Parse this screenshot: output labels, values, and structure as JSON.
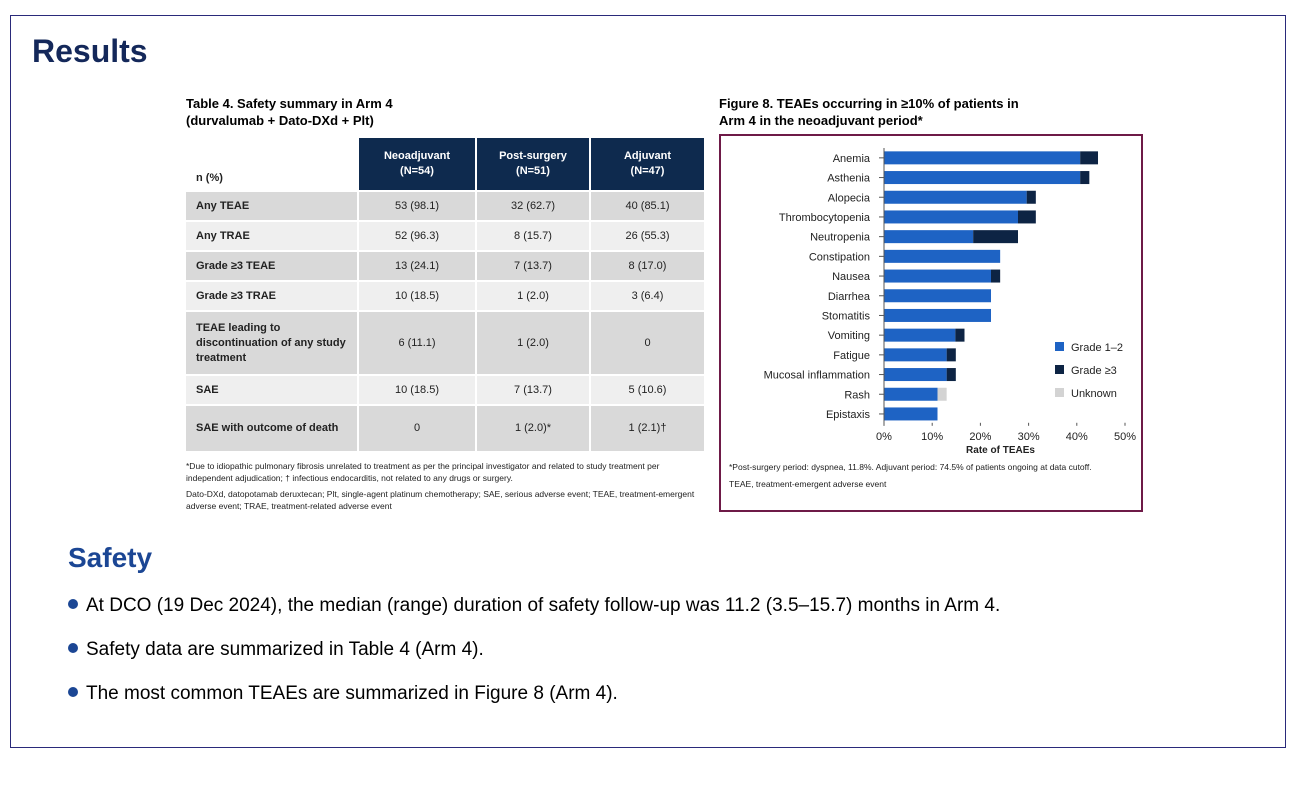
{
  "page": {
    "title": "Results"
  },
  "table": {
    "caption_line1": "Table 4. Safety summary in Arm 4",
    "caption_line2": "(durvalumab + Dato-DXd + Plt)",
    "header_label": "n (%)",
    "columns": [
      {
        "name": "Neoadjuvant",
        "n": "(N=54)"
      },
      {
        "name": "Post-surgery",
        "n": "(N=51)"
      },
      {
        "name": "Adjuvant",
        "n": "(N=47)"
      }
    ],
    "rows": [
      {
        "label": "Any TEAE",
        "values": [
          "53 (98.1)",
          "32 (62.7)",
          "40 (85.1)"
        ]
      },
      {
        "label": "Any TRAE",
        "values": [
          "52 (96.3)",
          "8 (15.7)",
          "26 (55.3)"
        ]
      },
      {
        "label": "Grade ≥3 TEAE",
        "values": [
          "13 (24.1)",
          "7 (13.7)",
          "8 (17.0)"
        ]
      },
      {
        "label": "Grade ≥3 TRAE",
        "values": [
          "10 (18.5)",
          "1 (2.0)",
          "3 (6.4)"
        ]
      },
      {
        "label": "TEAE leading to discontinuation of any study treatment",
        "values": [
          "6 (11.1)",
          "1 (2.0)",
          "0"
        ]
      },
      {
        "label": "SAE",
        "values": [
          "10 (18.5)",
          "7 (13.7)",
          "5 (10.6)"
        ]
      },
      {
        "label": "SAE with outcome of death",
        "values": [
          "0",
          "1 (2.0)*",
          "1 (2.1)†"
        ]
      }
    ],
    "footnote1": "*Due to idiopathic pulmonary fibrosis unrelated to treatment as per the principal investigator and related to study treatment per independent adjudication; † infectious endocarditis, not related to any drugs or surgery.",
    "footnote2": "Dato-DXd, datopotamab deruxtecan; Plt, single-agent platinum chemotherapy; SAE, serious adverse event; TEAE, treatment-emergent adverse event; TRAE, treatment-related adverse event"
  },
  "figure": {
    "caption_line1": "Figure 8. TEAEs occurring in ≥10% of patients in",
    "caption_line2": "Arm 4 in the neoadjuvant period*",
    "footnote1": "*Post-surgery period: dyspnea, 11.8%. Adjuvant period: 74.5% of patients ongoing at data cutoff.",
    "footnote2": "TEAE, treatment-emergent adverse event"
  },
  "chart_data": {
    "type": "bar",
    "orientation": "horizontal",
    "stacked": true,
    "categories": [
      "Anemia",
      "Asthenia",
      "Alopecia",
      "Thrombocytopenia",
      "Neutropenia",
      "Constipation",
      "Nausea",
      "Diarrhea",
      "Stomatitis",
      "Vomiting",
      "Fatigue",
      "Mucosal inflammation",
      "Rash",
      "Epistaxis"
    ],
    "series": [
      {
        "name": "Grade 1–2",
        "color": "#1e63c4",
        "values": [
          40.7,
          40.7,
          29.6,
          27.8,
          18.5,
          24.1,
          22.2,
          22.2,
          22.2,
          14.8,
          13.0,
          13.0,
          11.1,
          11.1
        ]
      },
      {
        "name": "Grade ≥3",
        "color": "#0d2444",
        "values": [
          3.7,
          1.9,
          1.9,
          3.7,
          9.3,
          0,
          1.9,
          0,
          0,
          1.9,
          1.9,
          1.9,
          0,
          0
        ]
      },
      {
        "name": "Unknown",
        "color": "#d3d3d3",
        "values": [
          0,
          0,
          0,
          0,
          0,
          0,
          0,
          0,
          0,
          0,
          0,
          0,
          1.9,
          0
        ]
      }
    ],
    "xlabel": "Rate of TEAEs",
    "xlim": [
      0,
      50
    ],
    "xticks": [
      "0%",
      "10%",
      "20%",
      "30%",
      "40%",
      "50%"
    ],
    "legend_position": "right",
    "grid": false
  },
  "safety": {
    "heading": "Safety",
    "bullets": [
      "At DCO (19 Dec 2024), the median (range) duration of safety follow-up was 11.2 (3.5–15.7) months in Arm 4.",
      "Safety data are summarized in Table 4 (Arm 4).",
      "The most common TEAEs are summarized in Figure 8 (Arm 4)."
    ]
  }
}
